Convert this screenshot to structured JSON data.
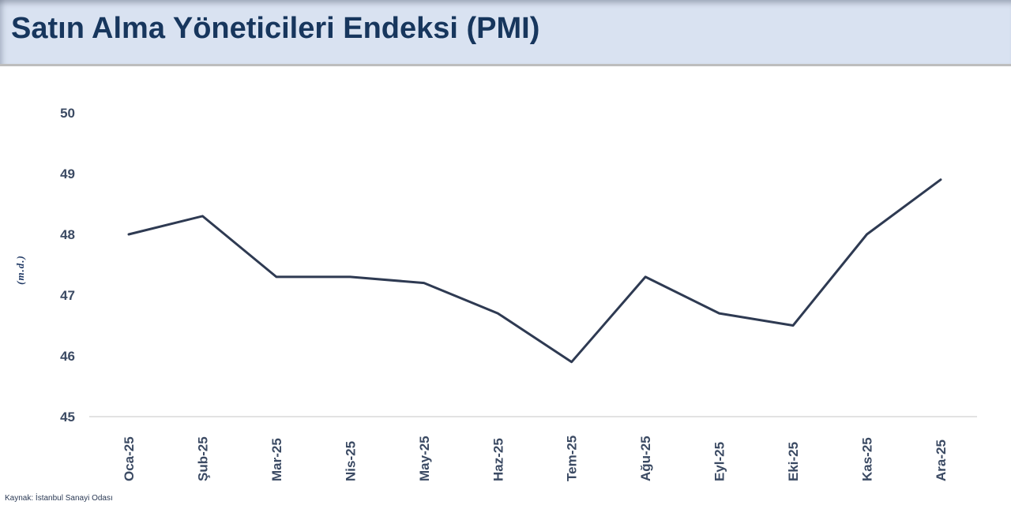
{
  "header": {
    "title": "Satın Alma Yöneticileri Endeksi (PMI)"
  },
  "footer": {
    "source": "Kaynak: İstanbul Sanayi Odası"
  },
  "colors": {
    "header_bg": "#d9e2f1",
    "title_text": "#17365d",
    "line": "#2e3a52",
    "axis_text": "#3b4a63",
    "baseline": "#d9d9d9"
  },
  "chart_data": {
    "type": "line",
    "title": "Satın Alma Yöneticileri Endeksi (PMI)",
    "ylabel": "(m.d.)",
    "xlabel": "",
    "categories": [
      "Oca-25",
      "Şub-25",
      "Mar-25",
      "Nis-25",
      "May-25",
      "Haz-25",
      "Tem-25",
      "Ağu-25",
      "Eyl-25",
      "Eki-25",
      "Kas-25",
      "Ara-25"
    ],
    "values": [
      48.0,
      48.3,
      47.3,
      47.3,
      47.2,
      46.7,
      45.9,
      47.3,
      46.7,
      46.5,
      48.0,
      48.9
    ],
    "ylim": [
      45,
      50
    ],
    "yticks": [
      45,
      46,
      47,
      48,
      49,
      50
    ],
    "grid": false,
    "legend": false,
    "line_color": "#2e3a52",
    "source": "Kaynak: İstanbul Sanayi Odası"
  }
}
